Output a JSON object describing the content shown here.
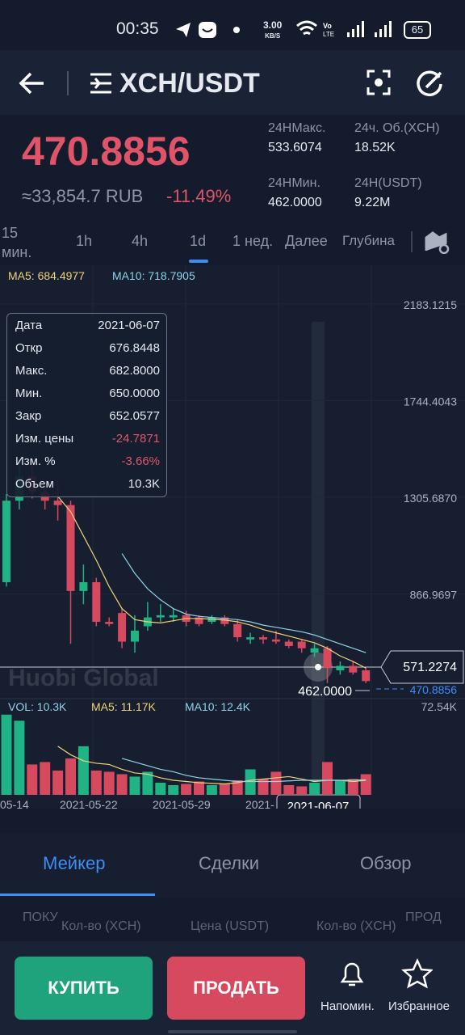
{
  "status_bar": {
    "time": "00:35",
    "speed": "3.00",
    "speed_unit": "KB/S",
    "battery": "65"
  },
  "header": {
    "pair": "XCH/USDT"
  },
  "price": {
    "last": "470.8856",
    "fiat": "≈33,854.7 RUB",
    "change": "-11.49%"
  },
  "stats": [
    {
      "label": "24HМакс.",
      "value": "533.6074"
    },
    {
      "label": "24ч. Об.(XCH)",
      "value": "18.52K"
    },
    {
      "label": "24HМин.",
      "value": "462.0000"
    },
    {
      "label": "24H(USDT)",
      "value": "9.22M"
    }
  ],
  "intervals": {
    "items": [
      "15 мин.",
      "1h",
      "4h",
      "1d",
      "1 нед.",
      "Далее",
      "Глубина"
    ],
    "active": "1d"
  },
  "chart_data": {
    "type": "candlestick",
    "ma_labels": [
      "MA5: 684.4977",
      "MA10: 718.7905"
    ],
    "open": [
      920,
      1290,
      1400,
      1330,
      1290,
      1270,
      880,
      920,
      740,
      780,
      650,
      720,
      760,
      760,
      770,
      760,
      740,
      760,
      730,
      660,
      670,
      660,
      650,
      650,
      600,
      620,
      520,
      540,
      520
    ],
    "high": [
      1320,
      1480,
      1450,
      1360,
      1380,
      1290,
      1000,
      940,
      760,
      800,
      770,
      830,
      820,
      800,
      790,
      770,
      770,
      770,
      750,
      690,
      680,
      700,
      660,
      660,
      640,
      630,
      560,
      560,
      530
    ],
    "low": [
      900,
      1250,
      1300,
      1250,
      1200,
      640,
      820,
      720,
      720,
      620,
      600,
      700,
      740,
      740,
      720,
      720,
      730,
      720,
      650,
      640,
      640,
      640,
      620,
      600,
      580,
      462,
      500,
      500,
      462
    ],
    "close": [
      1290,
      1400,
      1330,
      1290,
      1270,
      880,
      920,
      740,
      730,
      650,
      700,
      760,
      770,
      770,
      740,
      730,
      760,
      730,
      670,
      670,
      660,
      650,
      630,
      620,
      620,
      530,
      540,
      510,
      470.8856
    ],
    "ma5": [
      null,
      null,
      null,
      null,
      1310,
      1240,
      1130,
      1020,
      900,
      800,
      750,
      740,
      735,
      745,
      755,
      755,
      752,
      748,
      740,
      725,
      705,
      690,
      675,
      660,
      645,
      620,
      585,
      560,
      530
    ],
    "ma10": [
      null,
      null,
      null,
      null,
      null,
      null,
      null,
      null,
      null,
      1050,
      960,
      890,
      840,
      800,
      775,
      765,
      760,
      755,
      750,
      740,
      725,
      715,
      705,
      695,
      680,
      660,
      640,
      620,
      600
    ],
    "up_color": "#1fb386",
    "down_color": "#d6495f",
    "ma5_color": "#f0d27a",
    "ma10_color": "#8fd3e8",
    "ylim": [
      406,
      2315
    ],
    "yticks": [
      866.9697,
      {
        "value": 1305.687,
        "label": "1305.6870"
      },
      1744.4043,
      2183.1215
    ],
    "volume": {
      "labels": [
        "VOL: 10.3K",
        "MA5: 11.17K",
        "MA10: 12.4K"
      ],
      "values": [
        66,
        61,
        25,
        27,
        20,
        30,
        40,
        20,
        19,
        17,
        15,
        19,
        10,
        8,
        9,
        11,
        8,
        9,
        12,
        21,
        13,
        19,
        8,
        7,
        10,
        27,
        12,
        13,
        17
      ],
      "ma5": [
        null,
        null,
        null,
        null,
        40,
        33,
        28,
        26,
        25,
        21,
        18,
        17,
        14,
        12,
        11,
        10,
        9.5,
        9,
        10,
        12,
        13,
        14,
        15,
        13,
        11,
        12,
        12,
        11,
        12
      ],
      "ma10": [
        null,
        null,
        null,
        null,
        null,
        null,
        null,
        null,
        null,
        30,
        27,
        24,
        21,
        19,
        16,
        14,
        13,
        12,
        11,
        11,
        11,
        11,
        11.5,
        12,
        12,
        12,
        12,
        12.2,
        12.4
      ],
      "ylim": [
        0,
        72.54
      ],
      "yticks": [
        {
          "value": 72.54,
          "label": "72.54K"
        }
      ]
    },
    "x_labels": [
      "05-14",
      "2021-05-22",
      "2021-05-29",
      "2021-"
    ],
    "crosshair": {
      "date": "2021-06-07",
      "price": "571.2274"
    },
    "low_label": "462.0000",
    "last_label": "470.8856",
    "watermark": "Huobi Global",
    "tooltip": {
      "rows": [
        [
          "Дата",
          "2021-06-07"
        ],
        [
          "Откр",
          "676.8448"
        ],
        [
          "Макс.",
          "682.8000"
        ],
        [
          "Мин.",
          "650.0000"
        ],
        [
          "Закр",
          "652.0577"
        ],
        [
          "Изм. цены",
          "-24.7871"
        ],
        [
          "Изм. %",
          "-3.66%"
        ],
        [
          "Объем",
          "10.3K"
        ]
      ]
    }
  },
  "tabs": {
    "items": [
      "Мейкер",
      "Сделки",
      "Обзор"
    ],
    "active": "Мейкер"
  },
  "table_headers": [
    "ПОКУ",
    "Кол-во (XCH)",
    "Цена (USDT)",
    "Кол-во (XCH)",
    "ПРОД"
  ],
  "actions": {
    "buy": "КУПИТЬ",
    "sell": "ПРОДАТЬ",
    "alert": "Напомин.",
    "favorite": "Избранное"
  }
}
